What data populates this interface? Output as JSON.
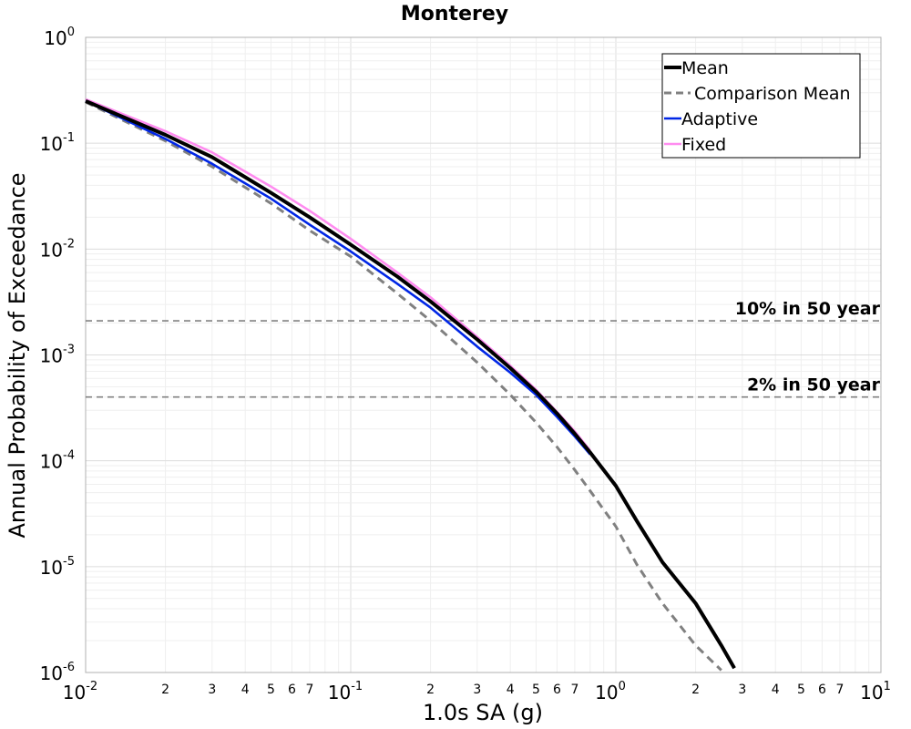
{
  "chart_data": {
    "type": "line",
    "title": "Monterey",
    "xlabel": "1.0s SA (g)",
    "ylabel": "Annual Probability of Exceedance",
    "x_scale": "log",
    "y_scale": "log",
    "xlim": [
      0.01,
      10
    ],
    "ylim": [
      1e-06,
      1
    ],
    "grid": true,
    "legend_position": "top-right",
    "x_major_ticks": [
      {
        "base": "10",
        "exp": "-2",
        "value": 0.01
      },
      {
        "base": "10",
        "exp": "-1",
        "value": 0.1
      },
      {
        "base": "10",
        "exp": "0",
        "value": 1
      },
      {
        "base": "10",
        "exp": "1",
        "value": 10
      }
    ],
    "y_major_ticks": [
      {
        "base": "10",
        "exp": "0",
        "value": 1
      },
      {
        "base": "10",
        "exp": "-1",
        "value": 0.1
      },
      {
        "base": "10",
        "exp": "-2",
        "value": 0.01
      },
      {
        "base": "10",
        "exp": "-3",
        "value": 0.001
      },
      {
        "base": "10",
        "exp": "-4",
        "value": 0.0001
      },
      {
        "base": "10",
        "exp": "-5",
        "value": 1e-05
      },
      {
        "base": "10",
        "exp": "-6",
        "value": 1e-06
      }
    ],
    "x_minor_labels": [
      "2",
      "3",
      "4",
      "5",
      "6",
      "7"
    ],
    "series": [
      {
        "name": "Mean",
        "color": "#000000",
        "style": "solid",
        "x": [
          0.01,
          0.02,
          0.03,
          0.05,
          0.07,
          0.1,
          0.15,
          0.2,
          0.3,
          0.4,
          0.5,
          0.6,
          0.7,
          0.8,
          1.0,
          1.2,
          1.5,
          2.0,
          2.5,
          2.8
        ],
        "y": [
          0.25,
          0.12,
          0.074,
          0.034,
          0.02,
          0.011,
          0.0055,
          0.0032,
          0.0014,
          0.00075,
          0.00045,
          0.00028,
          0.00018,
          0.00012,
          5.8e-05,
          2.7e-05,
          1.1e-05,
          4.5e-06,
          1.8e-06,
          1.1e-06
        ]
      },
      {
        "name": "Comparison Mean",
        "color": "#808080",
        "style": "dashed",
        "x": [
          0.01,
          0.02,
          0.03,
          0.05,
          0.07,
          0.1,
          0.15,
          0.2,
          0.3,
          0.4,
          0.5,
          0.6,
          0.7,
          0.8,
          1.0,
          1.2,
          1.5,
          2.0,
          2.5
        ],
        "y": [
          0.245,
          0.105,
          0.06,
          0.027,
          0.015,
          0.0085,
          0.0038,
          0.0021,
          0.00085,
          0.00042,
          0.00023,
          0.000135,
          8.2e-05,
          5.2e-05,
          2.4e-05,
          1.05e-05,
          4.5e-06,
          1.8e-06,
          1.05e-06
        ]
      },
      {
        "name": "Adaptive",
        "color": "#0026e6",
        "style": "solid",
        "x": [
          0.01,
          0.02,
          0.03,
          0.05,
          0.07,
          0.1,
          0.15,
          0.2,
          0.3,
          0.4,
          0.5,
          0.6,
          0.7,
          0.8
        ],
        "y": [
          0.25,
          0.11,
          0.064,
          0.03,
          0.017,
          0.0095,
          0.0047,
          0.0028,
          0.0012,
          0.00068,
          0.00042,
          0.00026,
          0.00017,
          0.000115
        ]
      },
      {
        "name": "Fixed",
        "color": "#ff8cf0",
        "style": "solid",
        "x": [
          0.01,
          0.02,
          0.03,
          0.05,
          0.07,
          0.1,
          0.15,
          0.2,
          0.3,
          0.4,
          0.5,
          0.6,
          0.7,
          0.8
        ],
        "y": [
          0.26,
          0.13,
          0.082,
          0.039,
          0.023,
          0.0125,
          0.006,
          0.0035,
          0.00148,
          0.00079,
          0.00047,
          0.00029,
          0.00019,
          0.000125
        ]
      }
    ],
    "reference_lines": [
      {
        "label": "10% in 50 year",
        "y": 0.0021,
        "color": "#808080",
        "style": "dashed"
      },
      {
        "label": "2% in 50 year",
        "y": 0.0004,
        "color": "#808080",
        "style": "dashed"
      }
    ]
  }
}
